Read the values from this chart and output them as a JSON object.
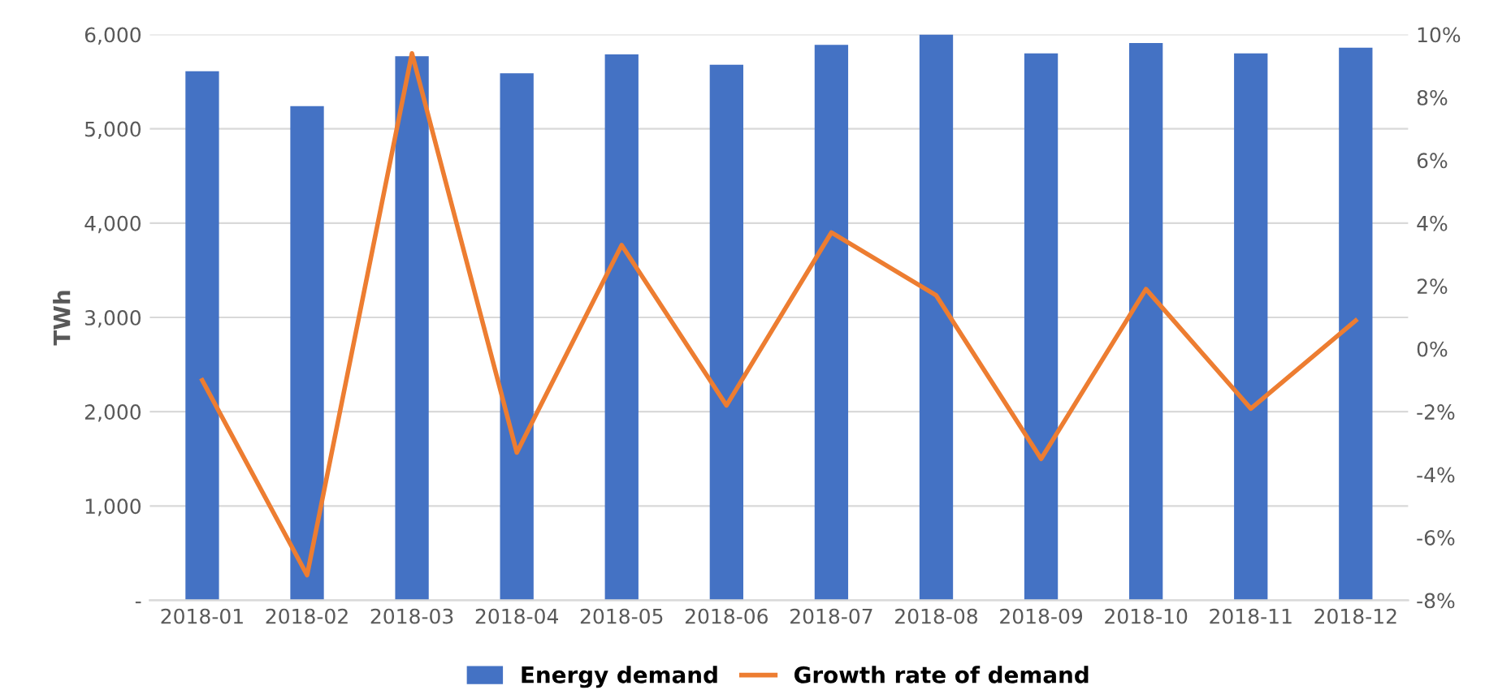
{
  "chart_data": {
    "type": "bar",
    "ylabel": "TWh",
    "categories": [
      "2018-01",
      "2018-02",
      "2018-03",
      "2018-04",
      "2018-05",
      "2018-06",
      "2018-07",
      "2018-08",
      "2018-09",
      "2018-10",
      "2018-11",
      "2018-12"
    ],
    "series": [
      {
        "name": "Energy demand",
        "color": "#4472c4",
        "values": [
          5610,
          5240,
          5770,
          5590,
          5790,
          5680,
          5890,
          6000,
          5800,
          5910,
          5800,
          5860
        ]
      },
      {
        "name": "Growth rate of demand",
        "type": "line",
        "axis": "y2",
        "color": "#ed7d31",
        "values": [
          -1.0,
          -7.2,
          9.4,
          -3.3,
          3.3,
          -1.8,
          3.7,
          1.7,
          -3.5,
          1.9,
          -1.9,
          0.9
        ]
      }
    ],
    "ylim": [
      0,
      6000
    ],
    "yticks": [
      {
        "value": 0,
        "label": "-"
      },
      {
        "value": 1000,
        "label": "1,000"
      },
      {
        "value": 2000,
        "label": "2,000"
      },
      {
        "value": 3000,
        "label": "3,000"
      },
      {
        "value": 4000,
        "label": "4,000"
      },
      {
        "value": 5000,
        "label": "5,000"
      },
      {
        "value": 6000,
        "label": "6,000"
      }
    ],
    "y2lim": [
      -8,
      10
    ],
    "y2ticks": [
      {
        "value": -8,
        "label": "-8%"
      },
      {
        "value": -6,
        "label": "-6%"
      },
      {
        "value": -4,
        "label": "-4%"
      },
      {
        "value": -2,
        "label": "-2%"
      },
      {
        "value": 0,
        "label": "0%"
      },
      {
        "value": 2,
        "label": "2%"
      },
      {
        "value": 4,
        "label": "4%"
      },
      {
        "value": 6,
        "label": "6%"
      },
      {
        "value": 8,
        "label": "8%"
      },
      {
        "value": 10,
        "label": "10%"
      }
    ],
    "grid": "y",
    "legend": "bottom"
  }
}
